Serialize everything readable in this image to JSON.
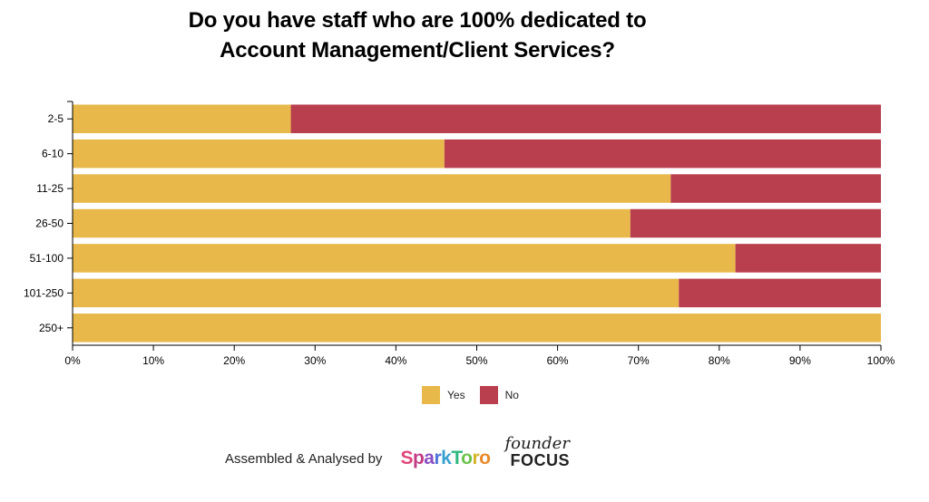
{
  "title_line1": "Do you have staff who are 100% dedicated to",
  "title_line2": "Account Management/Client Services?",
  "chart_data": {
    "type": "bar",
    "orientation": "horizontal",
    "stacked": true,
    "title": "Do you have staff who are 100% dedicated to Account Management/Client Services?",
    "categories": [
      "2-5",
      "6-10",
      "11-25",
      "26-50",
      "51-100",
      "101-250",
      "250+"
    ],
    "series": [
      {
        "name": "Yes",
        "color": "#e8b94a",
        "values": [
          27,
          46,
          74,
          69,
          82,
          75,
          100
        ]
      },
      {
        "name": "No",
        "color": "#b93e4e",
        "values": [
          73,
          54,
          26,
          31,
          18,
          25,
          0
        ]
      }
    ],
    "x_ticks": [
      "0%",
      "10%",
      "20%",
      "30%",
      "40%",
      "50%",
      "60%",
      "70%",
      "80%",
      "90%",
      "100%"
    ],
    "xlim": [
      0,
      100
    ],
    "legend_position": "bottom-center"
  },
  "legend": {
    "yes_label": "Yes",
    "no_label": "No",
    "yes_color": "#e8b94a",
    "no_color": "#b93e4e"
  },
  "footer": {
    "text": "Assembled & Analysed by",
    "sparktoro": [
      "S",
      "p",
      "a",
      "r",
      "k",
      "T",
      "o",
      "r",
      "o"
    ],
    "founder_top": "founder",
    "founder_bottom": "FOCUS"
  }
}
